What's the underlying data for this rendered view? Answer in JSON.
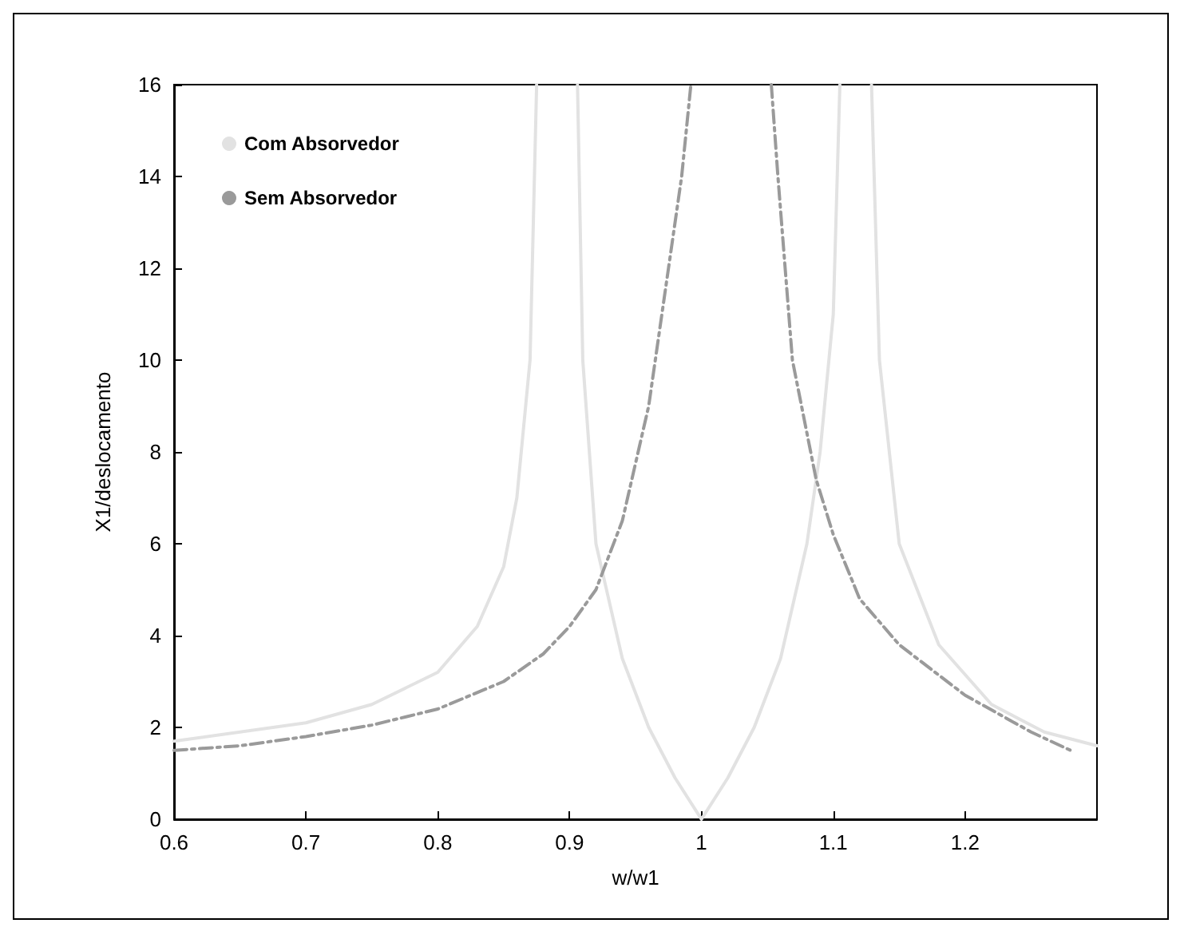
{
  "chart_data": {
    "type": "line",
    "xlabel": "w/w1",
    "ylabel": "X1/deslocamento",
    "xlim": [
      0.6,
      1.3
    ],
    "xticks": [
      0.6,
      0.7,
      0.8,
      0.9,
      1,
      1.1,
      1.2
    ],
    "ylim": [
      0,
      16
    ],
    "yticks": [
      0,
      2,
      4,
      6,
      8,
      10,
      12,
      14,
      16
    ],
    "grid": false,
    "legend": "top left",
    "marker": "none",
    "series": [
      {
        "name": "Com Absorvedor",
        "color": "#e2e2e2",
        "line_style": "solid",
        "x": [
          0.6,
          0.7,
          0.75,
          0.8,
          0.83,
          0.85,
          0.86,
          0.87,
          0.875,
          0.89,
          0.906,
          0.91,
          0.92,
          0.94,
          0.96,
          0.98,
          1.0,
          1.02,
          1.04,
          1.06,
          1.08,
          1.09,
          1.1,
          1.105,
          1.117,
          1.129,
          1.135,
          1.15,
          1.18,
          1.22,
          1.26,
          1.3
        ],
        "values": [
          1.7,
          2.1,
          2.5,
          3.2,
          4.2,
          5.5,
          7,
          10,
          16,
          null,
          16,
          10,
          6,
          3.5,
          2,
          0.9,
          0,
          0.9,
          2,
          3.5,
          6,
          8,
          11,
          16,
          null,
          16,
          10,
          6,
          3.8,
          2.5,
          1.9,
          1.6
        ]
      },
      {
        "name": "Sem Absorvedor",
        "color": "#9a9a9a",
        "line_style": "dashed",
        "x": [
          0.6,
          0.65,
          0.7,
          0.75,
          0.8,
          0.85,
          0.88,
          0.9,
          0.92,
          0.94,
          0.96,
          0.975,
          0.985,
          0.992,
          1.02,
          1.053,
          1.058,
          1.069,
          1.087,
          1.1,
          1.12,
          1.15,
          1.2,
          1.25,
          1.28
        ],
        "values": [
          1.5,
          1.6,
          1.8,
          2.05,
          2.4,
          3.0,
          3.6,
          4.2,
          5.0,
          6.5,
          9,
          12,
          14,
          16,
          null,
          16,
          14,
          10,
          7.4,
          6.2,
          4.8,
          3.8,
          2.7,
          1.9,
          1.5
        ]
      }
    ]
  }
}
